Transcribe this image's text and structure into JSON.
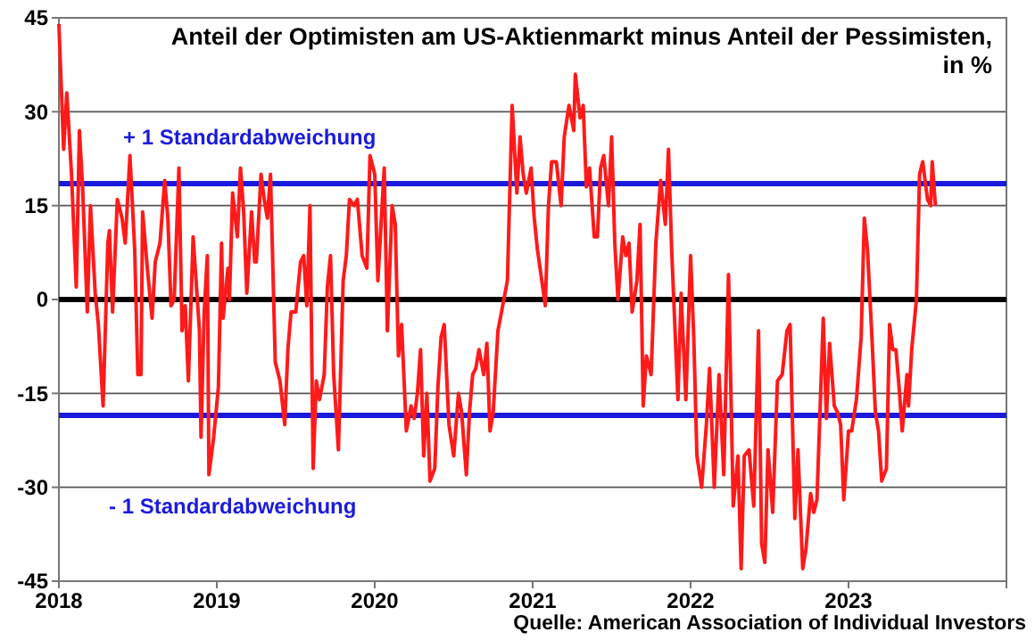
{
  "chart_data": {
    "type": "line",
    "title": "Anteil der Optimisten am US-Aktienmarkt minus Anteil der Pessimisten, in %",
    "annotations": [
      "Quelle: American Association of Individual Investors"
    ],
    "xlim": [
      2018,
      2024
    ],
    "xticks": [
      2018,
      2019,
      2020,
      2021,
      2022,
      2023,
      {
        "value": 2024,
        "label": null
      }
    ],
    "ylim": [
      -45,
      45
    ],
    "yticks": [
      -45,
      -30,
      -15,
      0,
      15,
      30,
      45
    ],
    "grid": "y",
    "marker": "none",
    "line_style": "solid",
    "ref_lines": [
      {
        "axis": "y",
        "value": 18.5,
        "label": "+ 1 Standardabweichung",
        "color": "#1a1adc"
      },
      {
        "axis": "y",
        "value": -18.5,
        "label": "- 1 Standardabweichung",
        "color": "#1a1adc"
      },
      {
        "axis": "y",
        "value": 0,
        "label": null,
        "color": "#000000"
      }
    ],
    "series": [
      {
        "color": "#ff1a1a",
        "x": [
          2018.0,
          2018.03,
          2018.05,
          2018.08,
          2018.11,
          2018.13,
          2018.15,
          2018.18,
          2018.2,
          2018.23,
          2018.25,
          2018.28,
          2018.31,
          2018.32,
          2018.34,
          2018.37,
          2018.4,
          2018.42,
          2018.45,
          2018.48,
          2018.5,
          2018.52,
          2018.53,
          2018.56,
          2018.59,
          2018.61,
          2018.64,
          2018.67,
          2018.69,
          2018.71,
          2018.73,
          2018.76,
          2018.78,
          2018.8,
          2018.82,
          2018.85,
          2018.89,
          2018.9,
          2018.92,
          2018.94,
          2018.95,
          2018.98,
          2019.01,
          2019.03,
          2019.04,
          2019.07,
          2019.08,
          2019.1,
          2019.13,
          2019.15,
          2019.17,
          2019.19,
          2019.22,
          2019.24,
          2019.25,
          2019.28,
          2019.3,
          2019.32,
          2019.34,
          2019.37,
          2019.4,
          2019.43,
          2019.45,
          2019.47,
          2019.5,
          2019.53,
          2019.55,
          2019.57,
          2019.59,
          2019.61,
          2019.63,
          2019.65,
          2019.68,
          2019.7,
          2019.72,
          2019.74,
          2019.77,
          2019.8,
          2019.82,
          2019.84,
          2019.87,
          2019.89,
          2019.92,
          2019.95,
          2019.97,
          2020.0,
          2020.02,
          2020.06,
          2020.08,
          2020.11,
          2020.13,
          2020.15,
          2020.17,
          2020.2,
          2020.23,
          2020.25,
          2020.27,
          2020.29,
          2020.31,
          2020.33,
          2020.35,
          2020.38,
          2020.4,
          2020.42,
          2020.44,
          2020.47,
          2020.5,
          2020.53,
          2020.55,
          2020.58,
          2020.6,
          2020.62,
          2020.64,
          2020.66,
          2020.69,
          2020.71,
          2020.73,
          2020.75,
          2020.78,
          2020.81,
          2020.84,
          2020.87,
          2020.9,
          2020.92,
          2020.94,
          2020.96,
          2020.99,
          2021.01,
          2021.03,
          2021.08,
          2021.1,
          2021.12,
          2021.15,
          2021.18,
          2021.2,
          2021.23,
          2021.26,
          2021.27,
          2021.3,
          2021.32,
          2021.34,
          2021.36,
          2021.39,
          2021.41,
          2021.43,
          2021.45,
          2021.48,
          2021.5,
          2021.52,
          2021.54,
          2021.57,
          2021.59,
          2021.61,
          2021.63,
          2021.66,
          2021.68,
          2021.7,
          2021.72,
          2021.75,
          2021.78,
          2021.81,
          2021.84,
          2021.86,
          2021.88,
          2021.92,
          2021.94,
          2021.97,
          2022.0,
          2022.02,
          2022.04,
          2022.07,
          2022.1,
          2022.12,
          2022.15,
          2022.18,
          2022.21,
          2022.24,
          2022.27,
          2022.3,
          2022.32,
          2022.34,
          2022.37,
          2022.4,
          2022.43,
          2022.45,
          2022.47,
          2022.49,
          2022.52,
          2022.55,
          2022.58,
          2022.61,
          2022.63,
          2022.66,
          2022.68,
          2022.71,
          2022.73,
          2022.76,
          2022.78,
          2022.8,
          2022.84,
          2022.86,
          2022.88,
          2022.91,
          2022.93,
          2022.95,
          2022.97,
          2023.0,
          2023.02,
          2023.05,
          2023.08,
          2023.1,
          2023.12,
          2023.15,
          2023.17,
          2023.19,
          2023.21,
          2023.24,
          2023.26,
          2023.28,
          2023.3,
          2023.32,
          2023.34,
          2023.37,
          2023.38,
          2023.4,
          2023.43,
          2023.45,
          2023.47,
          2023.5,
          2023.52,
          2023.53,
          2023.55
        ],
        "values": [
          44,
          24,
          33,
          20,
          2,
          27,
          18,
          -2,
          15,
          1,
          -4,
          -17,
          9,
          11,
          -2,
          16,
          13,
          9,
          23,
          8,
          -12,
          -12,
          14,
          5,
          -3,
          6,
          9,
          19,
          13,
          -1,
          0,
          21,
          -5,
          -1,
          -13,
          10,
          -5,
          -22,
          -2,
          7,
          -28,
          -22,
          -14,
          9,
          -3,
          5,
          0,
          17,
          10,
          21,
          14,
          1,
          14,
          6,
          6,
          20,
          16,
          13,
          20,
          -10,
          -13,
          -20,
          -8,
          -2,
          -2,
          6,
          7,
          -1,
          15,
          -27,
          -13,
          -16,
          -12,
          2,
          7,
          -12,
          -24,
          3,
          7,
          16,
          15,
          16,
          7,
          5,
          23,
          20,
          3,
          21,
          -5,
          15,
          12,
          -9,
          -4,
          -21,
          -17,
          -19,
          -15,
          -8,
          -25,
          -15,
          -29,
          -27,
          -14,
          -6,
          -4,
          -20,
          -25,
          -15,
          -18,
          -28,
          -18,
          -12,
          -11,
          -8,
          -12,
          -7,
          -21,
          -18,
          -5,
          -1,
          3,
          31,
          17,
          26,
          20,
          17,
          21,
          13,
          8,
          -1,
          15,
          22,
          22,
          15,
          26,
          31,
          27,
          36,
          29,
          31,
          18,
          21,
          10,
          10,
          21,
          23,
          15,
          26,
          9,
          0,
          10,
          7,
          9,
          -2,
          3,
          12,
          -17,
          -9,
          -12,
          9,
          19,
          12,
          24,
          8,
          -16,
          1,
          -16,
          7,
          -6,
          -25,
          -30,
          -20,
          -11,
          -30,
          -12,
          -28,
          4,
          -33,
          -25,
          -43,
          -25,
          -24,
          -33,
          -5,
          -39,
          -42,
          -24,
          -34,
          -13,
          -12,
          -5,
          -4,
          -35,
          -24,
          -43,
          -40,
          -31,
          -34,
          -32,
          -3,
          -19,
          -7,
          -17,
          -18,
          -20,
          -32,
          -21,
          -21,
          -16,
          -6,
          13,
          8,
          -7,
          -18,
          -21,
          -29,
          -27,
          -4,
          -8,
          -8,
          -14,
          -21,
          -12,
          -17,
          -8,
          0,
          20,
          22,
          16,
          15,
          22,
          15
        ]
      }
    ]
  }
}
